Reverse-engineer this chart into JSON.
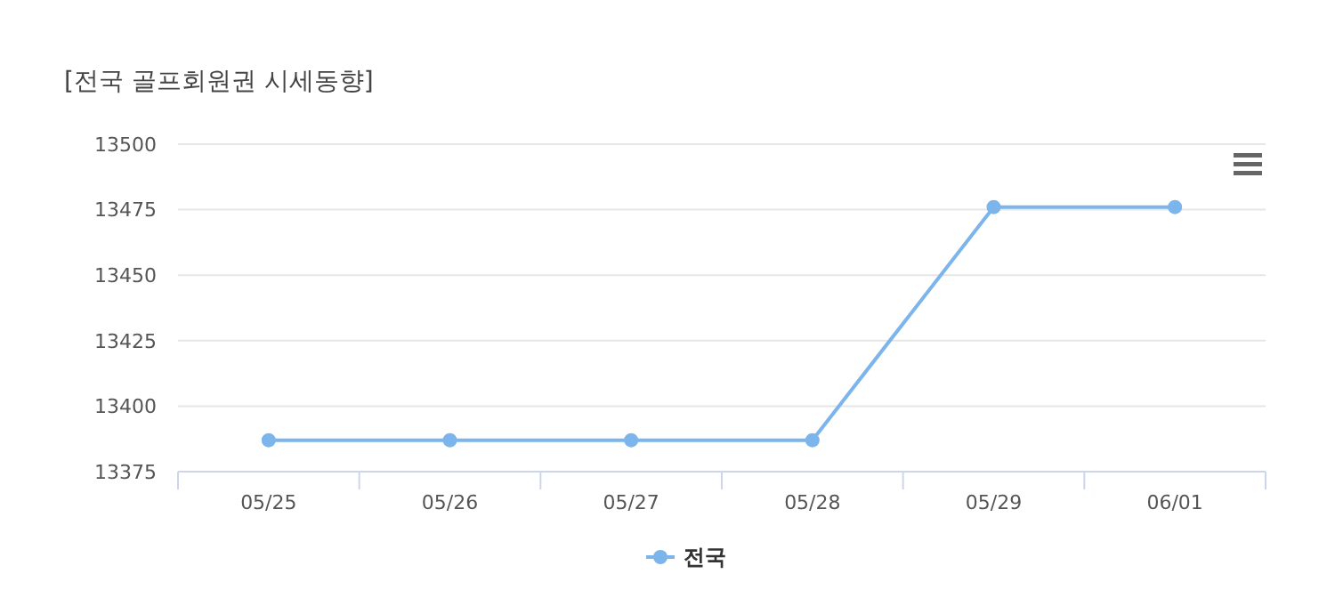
{
  "chart_data": {
    "type": "line",
    "title": "[전국 골프회원권 시세동향]",
    "categories": [
      "05/25",
      "05/26",
      "05/27",
      "05/28",
      "05/29",
      "06/01"
    ],
    "series": [
      {
        "name": "전국",
        "color": "#7cb5ec",
        "values": [
          13387,
          13387,
          13387,
          13387,
          13476,
          13476
        ]
      }
    ],
    "ylim": [
      13375,
      13500
    ],
    "yticks": [
      13375,
      13400,
      13425,
      13450,
      13475,
      13500
    ],
    "grid": "y",
    "legend": "bottom",
    "marker": "circle"
  }
}
